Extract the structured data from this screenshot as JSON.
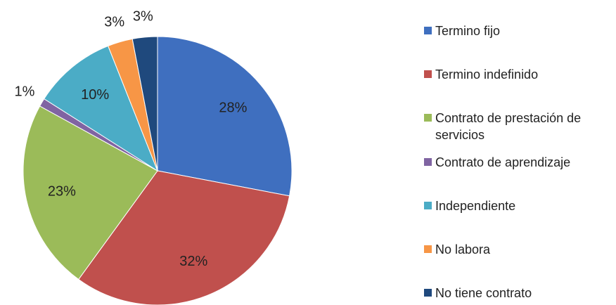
{
  "chart_data": {
    "type": "pie",
    "categories": [
      "Termino fijo",
      "Termino indefinido",
      "Contrato de prestación de servicios",
      "Contrato de aprendizaje",
      "Independiente",
      "No labora",
      "No tiene contrato"
    ],
    "values": [
      28,
      32,
      23,
      1,
      10,
      3,
      3
    ],
    "value_labels": [
      "28%",
      "32%",
      "23%",
      "1%",
      "10%",
      "3%",
      "3%"
    ],
    "colors": [
      "#3f6fbf",
      "#c0504d",
      "#9bbb59",
      "#8064a2",
      "#4bacc6",
      "#f79646",
      "#1f497d"
    ],
    "legend": "right"
  }
}
